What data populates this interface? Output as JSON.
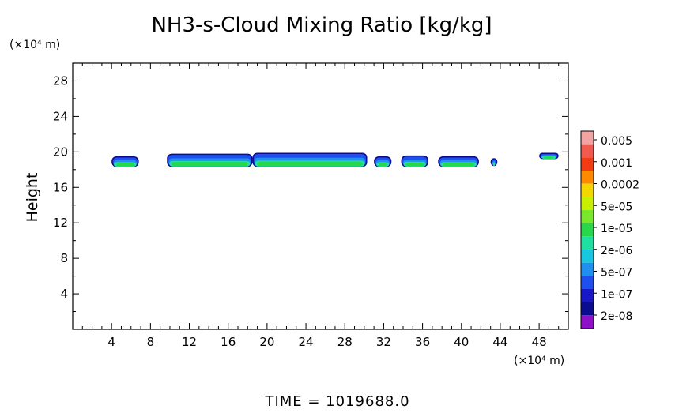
{
  "chart_data": {
    "type": "heatmap",
    "title": "NH3-s-Cloud Mixing Ratio [kg/kg]",
    "xlabel": "",
    "ylabel": "Height",
    "x_unit": "(×10⁴ m)",
    "y_unit": "(×10⁴ m)",
    "xlim": [
      0,
      51
    ],
    "ylim": [
      0,
      30
    ],
    "x_ticks": [
      4,
      8,
      12,
      16,
      20,
      24,
      28,
      32,
      36,
      40,
      44,
      48
    ],
    "y_ticks": [
      4,
      8,
      12,
      16,
      20,
      24,
      28
    ],
    "footer": "TIME = 1019688.0",
    "colorbar": {
      "labels": [
        "0.005",
        "0.001",
        "0.0002",
        "5e-05",
        "1e-05",
        "2e-06",
        "5e-07",
        "1e-07",
        "2e-08"
      ],
      "colors": [
        "#f4a3a3",
        "#f25a4e",
        "#f23c14",
        "#ff8a00",
        "#f5d700",
        "#c8ee00",
        "#7ae82a",
        "#28d84a",
        "#1fe0a0",
        "#19c8e0",
        "#1f90f0",
        "#1e50f0",
        "#1818c8",
        "#0c0c90",
        "#9010c8"
      ]
    },
    "cloud_segments": [
      {
        "x": [
          4.0,
          6.8
        ],
        "y": [
          18.3,
          19.5
        ]
      },
      {
        "x": [
          9.7,
          18.5
        ],
        "y": [
          18.3,
          19.8
        ]
      },
      {
        "x": [
          18.5,
          30.3
        ],
        "y": [
          18.3,
          19.9
        ]
      },
      {
        "x": [
          31.0,
          32.8
        ],
        "y": [
          18.3,
          19.5
        ]
      },
      {
        "x": [
          33.8,
          36.6
        ],
        "y": [
          18.3,
          19.6
        ]
      },
      {
        "x": [
          37.6,
          41.8
        ],
        "y": [
          18.3,
          19.5
        ]
      },
      {
        "x": [
          43.0,
          43.7
        ],
        "y": [
          18.4,
          19.3
        ]
      },
      {
        "x": [
          48.0,
          50.0
        ],
        "y": [
          19.2,
          19.9
        ]
      }
    ]
  }
}
